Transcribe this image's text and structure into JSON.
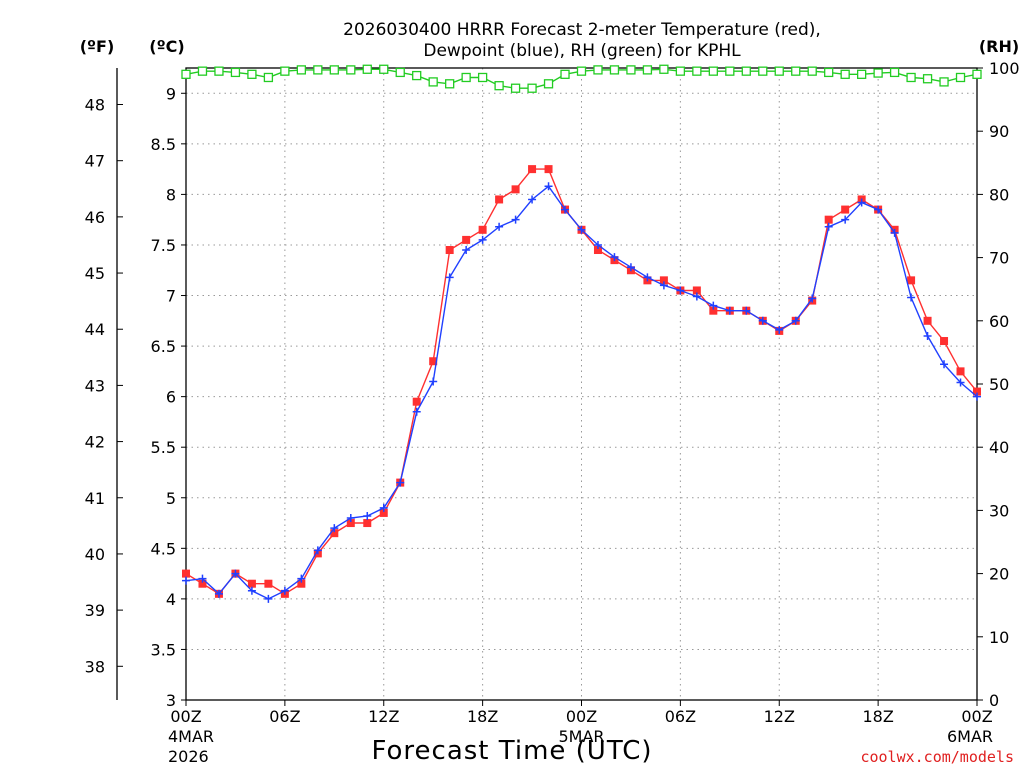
{
  "title_line1": "2026030400 HRRR Forecast 2-meter Temperature (red),",
  "title_line2": "Dewpoint (blue), RH (green) for KPHL",
  "unit_f": "(ºF)",
  "unit_c": "(ºC)",
  "unit_rh": "(RH)",
  "xlabel": "Forecast Time (UTC)",
  "credit": "coolwx.com/models",
  "colors": {
    "temperature": "#ff3030",
    "dewpoint": "#2040ff",
    "rh": "#22cc22",
    "credit": "#e02020"
  },
  "chart_data": {
    "type": "line",
    "x": {
      "start": "2026-03-04 00Z",
      "end": "2026-03-06 00Z",
      "step_hours": 1
    },
    "x_ticks": [
      {
        "label": "00Z",
        "date1": "4MAR",
        "date2": "2026"
      },
      {
        "label": "06Z"
      },
      {
        "label": "12Z"
      },
      {
        "label": "18Z"
      },
      {
        "label": "00Z",
        "date1": "5MAR"
      },
      {
        "label": "06Z"
      },
      {
        "label": "12Z"
      },
      {
        "label": "18Z"
      },
      {
        "label": "00Z",
        "date1": "6MAR"
      }
    ],
    "y_celsius": {
      "min": 3,
      "max": 9.25,
      "ticks": [
        "3",
        "3.5",
        "4",
        "4.5",
        "5",
        "5.5",
        "6",
        "6.5",
        "7",
        "7.5",
        "8",
        "8.5",
        "9"
      ]
    },
    "y_fahrenheit": {
      "ticks": [
        "38",
        "39",
        "40",
        "41",
        "42",
        "43",
        "44",
        "45",
        "46",
        "47",
        "48"
      ]
    },
    "y_rh": {
      "min": 0,
      "max": 100,
      "ticks": [
        "0",
        "10",
        "20",
        "30",
        "40",
        "50",
        "60",
        "70",
        "80",
        "90",
        "100"
      ]
    },
    "grid": true,
    "series": [
      {
        "name": "Temperature",
        "unit": "C",
        "values": [
          4.25,
          4.15,
          4.05,
          4.25,
          4.15,
          4.15,
          4.05,
          4.15,
          4.45,
          4.65,
          4.75,
          4.75,
          4.85,
          5.15,
          5.95,
          6.35,
          7.45,
          7.55,
          7.65,
          7.95,
          8.05,
          8.25,
          8.25,
          7.85,
          7.65,
          7.45,
          7.35,
          7.25,
          7.15,
          7.15,
          7.05,
          7.05,
          6.85,
          6.85,
          6.85,
          6.75,
          6.65,
          6.75,
          6.95,
          7.75,
          7.85,
          7.95,
          7.85,
          7.65,
          7.15,
          6.75,
          6.55,
          6.25,
          6.05
        ]
      },
      {
        "name": "Dewpoint",
        "unit": "C",
        "values": [
          4.18,
          4.2,
          4.05,
          4.25,
          4.08,
          4.0,
          4.08,
          4.2,
          4.48,
          4.7,
          4.8,
          4.82,
          4.9,
          5.15,
          5.85,
          6.15,
          7.18,
          7.45,
          7.55,
          7.68,
          7.75,
          7.95,
          8.08,
          7.85,
          7.65,
          7.5,
          7.38,
          7.28,
          7.18,
          7.1,
          7.05,
          6.99,
          6.9,
          6.85,
          6.85,
          6.75,
          6.66,
          6.75,
          6.97,
          7.68,
          7.75,
          7.92,
          7.85,
          7.62,
          6.98,
          6.6,
          6.32,
          6.14,
          6.0
        ]
      },
      {
        "name": "RH",
        "unit": "%",
        "values": [
          99,
          99.5,
          99.5,
          99.3,
          99,
          98.5,
          99.5,
          99.7,
          99.7,
          99.7,
          99.7,
          99.8,
          99.8,
          99.3,
          98.8,
          97.8,
          97.5,
          98.5,
          98.5,
          97.2,
          96.8,
          96.8,
          97.5,
          99,
          99.5,
          99.7,
          99.7,
          99.7,
          99.7,
          99.8,
          99.5,
          99.5,
          99.5,
          99.5,
          99.5,
          99.5,
          99.5,
          99.5,
          99.5,
          99.3,
          99,
          99,
          99.2,
          99.3,
          98.5,
          98.3,
          97.8,
          98.5,
          99
        ]
      }
    ]
  }
}
